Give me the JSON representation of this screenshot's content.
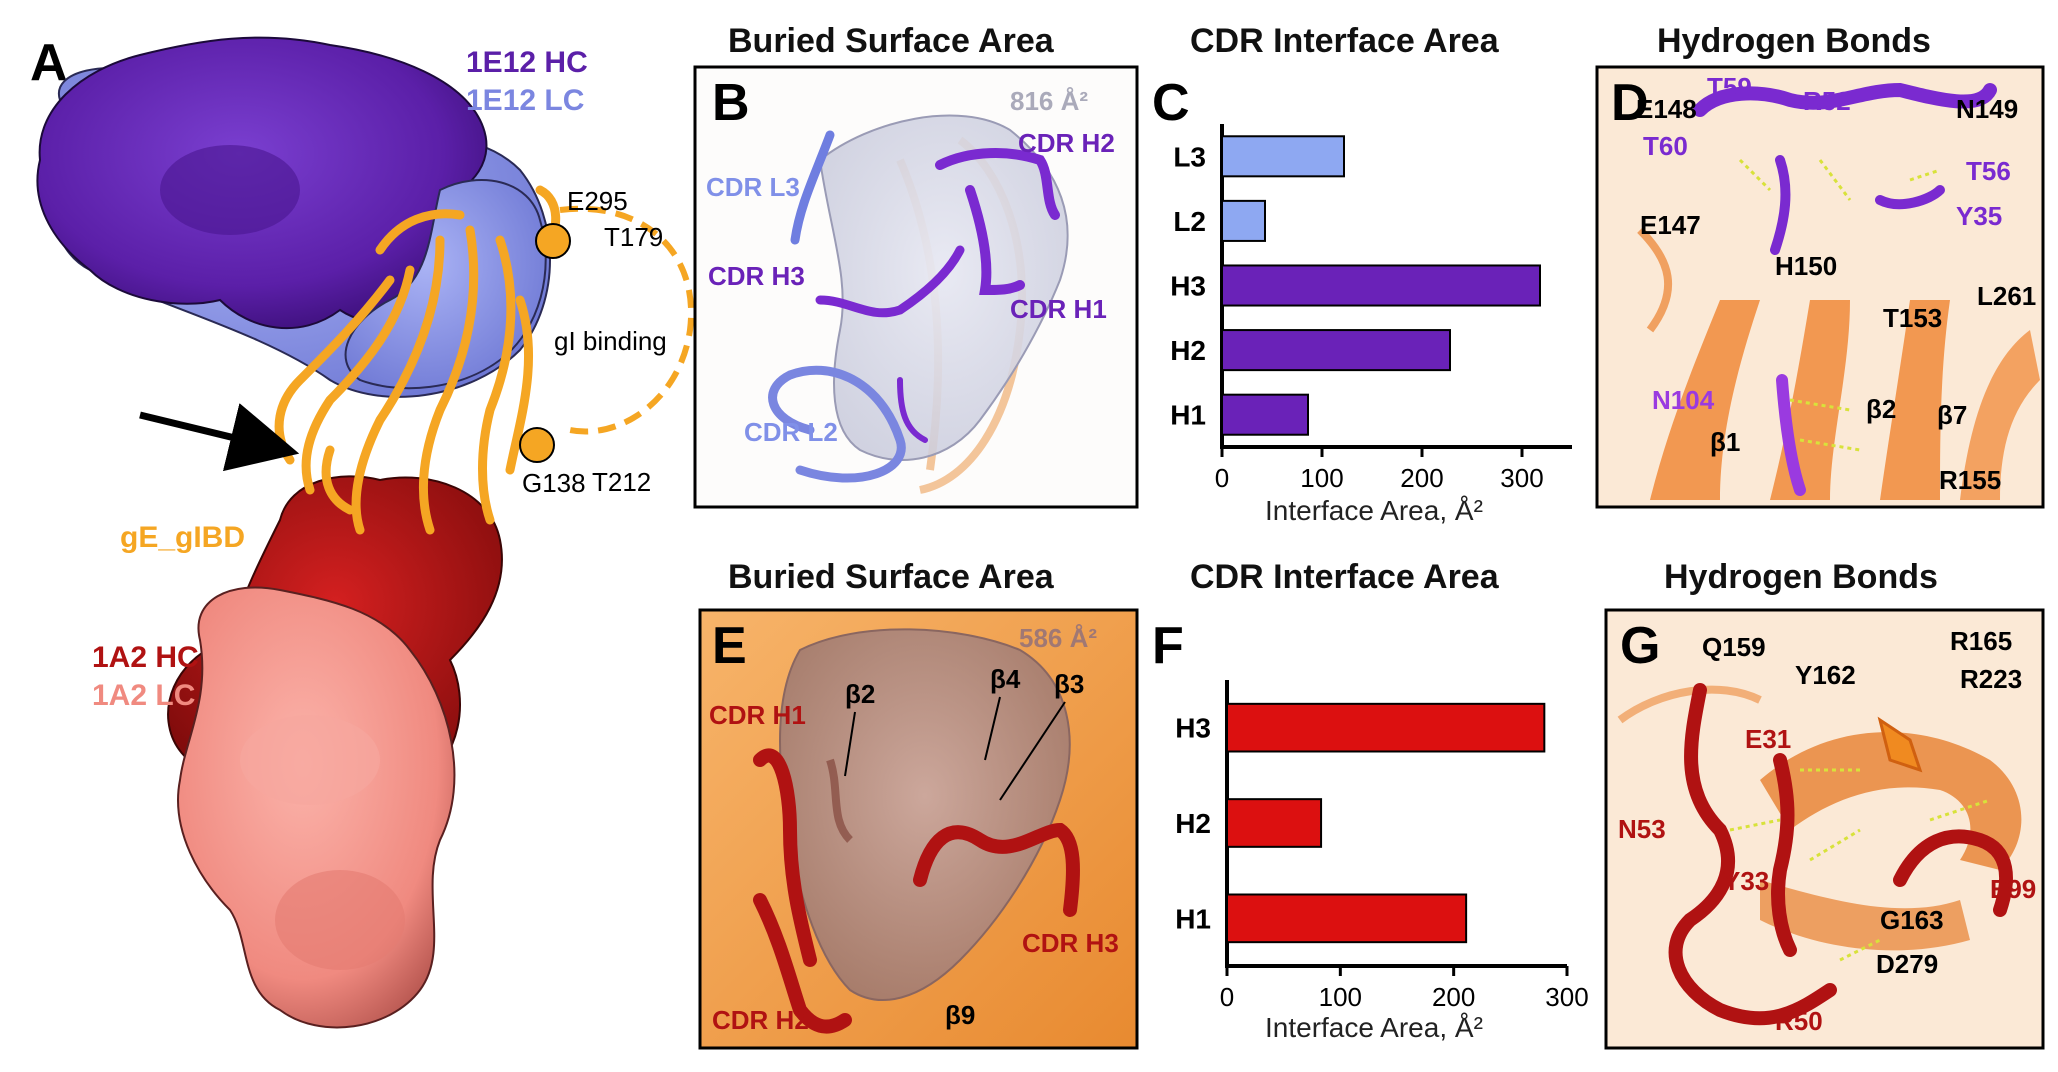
{
  "figure": {
    "panels": {
      "A": {
        "letter": "A",
        "hc_label": "1E12 HC",
        "lc_label": "1E12 LC",
        "hc2_label": "1A2 HC",
        "lc2_label": "1A2 LC",
        "ge_label": "gE_gIBD",
        "gi_binding": "gI binding",
        "residues": [
          "E295",
          "T179",
          "G138",
          "T212"
        ],
        "colors": {
          "hc1": "#5b1fa8",
          "lc1": "#7b86e0",
          "hc2": "#b01212",
          "lc2": "#f08a80",
          "ge": "#f5a623"
        }
      },
      "B": {
        "letter": "B",
        "title": "Buried Surface Area",
        "area": "816 Å²",
        "labels": {
          "l3": "CDR L3",
          "h2": "CDR H2",
          "h3": "CDR H3",
          "h1": "CDR H1",
          "l2": "CDR L2"
        }
      },
      "C": {
        "letter": "C",
        "title": "CDR Interface Area",
        "xlabel": "Interface Area, Å²"
      },
      "D": {
        "letter": "D",
        "title": "Hydrogen Bonds",
        "labels": [
          "E148",
          "T59",
          "R52",
          "N149",
          "T60",
          "T56",
          "E147",
          "Y35",
          "H150",
          "L261",
          "T153",
          "N104",
          "β1",
          "β2",
          "β7",
          "R155"
        ]
      },
      "E": {
        "letter": "E",
        "title": "Buried Surface Area",
        "area": "586 Å²",
        "labels": {
          "h1": "CDR H1",
          "b2": "β2",
          "b4": "β4",
          "b3": "β3",
          "h3": "CDR H3",
          "h2": "CDR H2",
          "b9": "β9"
        }
      },
      "F": {
        "letter": "F",
        "title": "CDR Interface Area",
        "xlabel": "Interface Area, Å²"
      },
      "G": {
        "letter": "G",
        "title": "Hydrogen Bonds",
        "labels": [
          "Q159",
          "R165",
          "Y162",
          "R223",
          "E31",
          "N53",
          "Y33",
          "E99",
          "G163",
          "D279",
          "R50"
        ]
      }
    }
  },
  "chart_data": [
    {
      "panel": "C",
      "type": "bar",
      "orientation": "horizontal",
      "title": "CDR Interface Area",
      "categories": [
        "L3",
        "L2",
        "H3",
        "H2",
        "H1"
      ],
      "values": [
        122,
        43,
        318,
        228,
        86
      ],
      "colors": [
        "#8ea8f2",
        "#8ea8f2",
        "#6a22b8",
        "#6a22b8",
        "#6a22b8"
      ],
      "xlabel": "Interface Area, Å²",
      "ylabel": "",
      "xlim": [
        0,
        350
      ],
      "xticks": [
        0,
        100,
        200,
        300
      ]
    },
    {
      "panel": "F",
      "type": "bar",
      "orientation": "horizontal",
      "title": "CDR Interface Area",
      "categories": [
        "H3",
        "H2",
        "H1"
      ],
      "values": [
        280,
        83,
        211
      ],
      "colors": [
        "#dc1010",
        "#dc1010",
        "#dc1010"
      ],
      "xlabel": "Interface Area, Å²",
      "ylabel": "",
      "xlim": [
        0,
        300
      ],
      "xticks": [
        0,
        100,
        200,
        300
      ]
    }
  ]
}
